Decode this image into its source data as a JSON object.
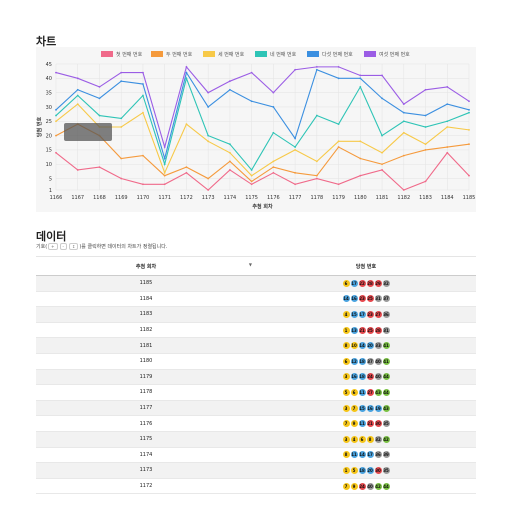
{
  "sections": {
    "chart_title": "차트",
    "data_title": "데이터"
  },
  "hint": {
    "prefix": "기호(",
    "keys": [
      "+",
      "-",
      "↕"
    ],
    "suffix": ")를 클릭하면 데이터의 차트가 정렬됩니다."
  },
  "table": {
    "headers": [
      "추첨 회차",
      "당첨 번호"
    ],
    "sort_icon": "▼",
    "rows": [
      {
        "round": "1185",
        "numbers": [
          6,
          17,
          22,
          28,
          29,
          32
        ]
      },
      {
        "round": "1184",
        "numbers": [
          14,
          16,
          23,
          25,
          31,
          37
        ]
      },
      {
        "round": "1183",
        "numbers": [
          4,
          15,
          17,
          23,
          27,
          36
        ]
      },
      {
        "round": "1182",
        "numbers": [
          1,
          13,
          21,
          25,
          28,
          31
        ]
      },
      {
        "round": "1181",
        "numbers": [
          8,
          10,
          14,
          20,
          33,
          41
        ]
      },
      {
        "round": "1180",
        "numbers": [
          6,
          12,
          18,
          37,
          40,
          41
        ]
      },
      {
        "round": "1179",
        "numbers": [
          3,
          16,
          18,
          24,
          40,
          44
        ]
      },
      {
        "round": "1178",
        "numbers": [
          5,
          6,
          11,
          27,
          43,
          44
        ]
      },
      {
        "round": "1177",
        "numbers": [
          3,
          7,
          15,
          16,
          19,
          43
        ]
      },
      {
        "round": "1176",
        "numbers": [
          7,
          9,
          11,
          21,
          30,
          35
        ]
      },
      {
        "round": "1175",
        "numbers": [
          3,
          4,
          6,
          8,
          32,
          42
        ]
      },
      {
        "round": "1174",
        "numbers": [
          8,
          11,
          14,
          17,
          36,
          39
        ]
      },
      {
        "round": "1173",
        "numbers": [
          1,
          5,
          18,
          20,
          30,
          35
        ]
      },
      {
        "round": "1172",
        "numbers": [
          7,
          9,
          24,
          40,
          42,
          44
        ]
      }
    ]
  },
  "chart_data": {
    "type": "line",
    "title": "",
    "xlabel": "추첨 회차",
    "ylabel": "당첨 번호",
    "ylim": [
      1,
      45
    ],
    "y_ticks": [
      1,
      5,
      10,
      15,
      20,
      25,
      30,
      35,
      40,
      45
    ],
    "grid": true,
    "legend_position": "top",
    "categories": [
      "1166",
      "1167",
      "1168",
      "1169",
      "1170",
      "1171",
      "1172",
      "1173",
      "1174",
      "1175",
      "1176",
      "1177",
      "1178",
      "1179",
      "1180",
      "1181",
      "1182",
      "1183",
      "1184",
      "1185"
    ],
    "series": [
      {
        "name": "첫 번째 번호",
        "color": "#f06a8a",
        "values": [
          14,
          8,
          9,
          5,
          3,
          3,
          7,
          1,
          8,
          3,
          7,
          3,
          5,
          3,
          6,
          8,
          1,
          4,
          14,
          6
        ]
      },
      {
        "name": "두 번째 번호",
        "color": "#f59a3c",
        "values": [
          20,
          24,
          20,
          12,
          13,
          6,
          9,
          5,
          11,
          4,
          9,
          7,
          6,
          16,
          12,
          10,
          13,
          15,
          16,
          17
        ]
      },
      {
        "name": "세 번째 번호",
        "color": "#f7c948",
        "values": [
          25,
          31,
          23,
          23,
          28,
          7,
          24,
          18,
          14,
          6,
          11,
          15,
          11,
          18,
          18,
          14,
          21,
          17,
          23,
          22
        ]
      },
      {
        "name": "네 번째 번호",
        "color": "#2ec4b6",
        "values": [
          27,
          34,
          27,
          26,
          34,
          10,
          40,
          20,
          17,
          8,
          21,
          16,
          27,
          24,
          37,
          20,
          25,
          23,
          25,
          28
        ]
      },
      {
        "name": "다섯 번째 번호",
        "color": "#3b8fe0",
        "values": [
          29,
          36,
          33,
          39,
          38,
          12,
          42,
          30,
          36,
          32,
          30,
          19,
          43,
          40,
          40,
          33,
          28,
          27,
          31,
          29
        ]
      },
      {
        "name": "여섯 번째 번호",
        "color": "#9b5de5",
        "values": [
          42,
          40,
          37,
          42,
          42,
          16,
          44,
          35,
          39,
          42,
          35,
          43,
          44,
          44,
          41,
          41,
          31,
          36,
          37,
          32
        ]
      }
    ]
  }
}
